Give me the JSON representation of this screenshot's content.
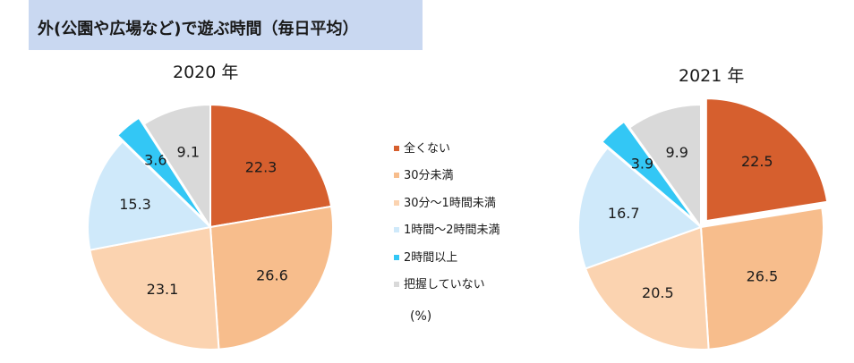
{
  "title": "外(公園や広場など)で遊ぶ時間（毎日平均）",
  "unit_label": "(%)",
  "legend": [
    {
      "label": "全くない",
      "color": "#d65f2e"
    },
    {
      "label": "30分未満",
      "color": "#f7bd8c"
    },
    {
      "label": "30分～1時間未満",
      "color": "#fbd3b0"
    },
    {
      "label": "1時間～2時間未満",
      "color": "#cfe9fa"
    },
    {
      "label": "2時間以上",
      "color": "#33c7f5"
    },
    {
      "label": "把握していない",
      "color": "#d9d9d9"
    }
  ],
  "chart_data": [
    {
      "type": "pie",
      "title": "2020 年",
      "categories": [
        "全くない",
        "30分未満",
        "30分～1時間未満",
        "1時間～2時間未満",
        "2時間以上",
        "把握していない"
      ],
      "values": [
        22.3,
        26.6,
        23.1,
        15.3,
        3.6,
        9.1
      ],
      "colors": [
        "#d65f2e",
        "#f7bd8c",
        "#fbd3b0",
        "#cfe9fa",
        "#33c7f5",
        "#d9d9d9"
      ],
      "exploded": [
        "2時間以上"
      ]
    },
    {
      "type": "pie",
      "title": "2021 年",
      "categories": [
        "全くない",
        "30分未満",
        "30分～1時間未満",
        "1時間～2時間未満",
        "2時間以上",
        "把握していない"
      ],
      "values": [
        22.5,
        26.5,
        20.5,
        16.7,
        3.9,
        9.9
      ],
      "colors": [
        "#d65f2e",
        "#f7bd8c",
        "#fbd3b0",
        "#cfe9fa",
        "#33c7f5",
        "#d9d9d9"
      ],
      "exploded": [
        "全くない",
        "2時間以上"
      ]
    }
  ]
}
